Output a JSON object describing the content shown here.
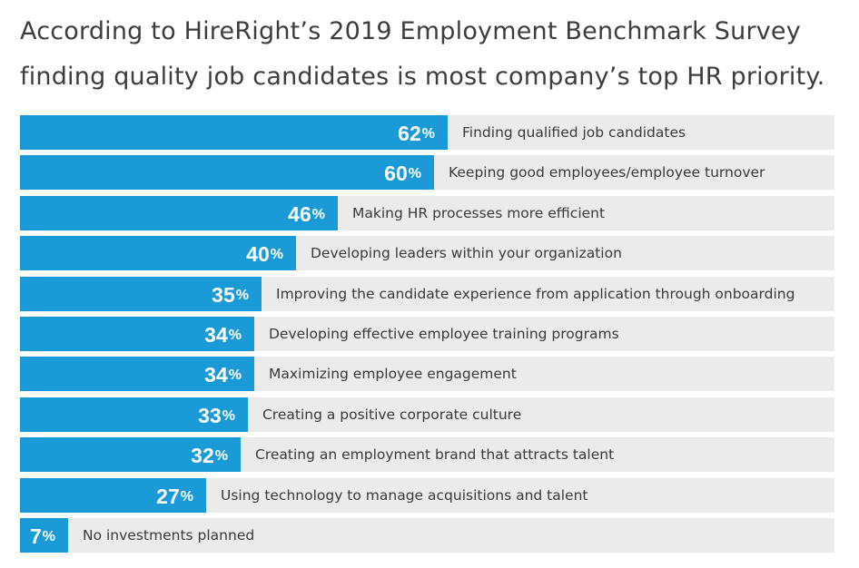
{
  "title_lines": [
    "According to HireRight’s 2019 Employment Benchmark Survey",
    "finding quality job candidates is most company’s top HR priority."
  ],
  "chart_data": {
    "type": "bar",
    "orientation": "horizontal",
    "title": "According to HireRight’s 2019 Employment Benchmark Survey finding quality job candidates is most company’s top HR priority.",
    "xlim": [
      0,
      100
    ],
    "unit": "%",
    "grid": false,
    "bar_color": "#1a9bd7",
    "track_color": "#ebebeb",
    "categories": [
      "Finding qualified job candidates",
      "Keeping good employees/employee turnover",
      "Making HR processes more efficient",
      "Developing leaders within your organization",
      "Improving the candidate experience from application through onboarding",
      "Developing effective employee training programs",
      "Maximizing employee engagement",
      "Creating a positive corporate culture",
      "Creating an employment brand that attracts talent",
      "Using technology to manage acquisitions and talent",
      "No investments planned"
    ],
    "values": [
      62,
      60,
      46,
      40,
      35,
      34,
      34,
      33,
      32,
      27,
      7
    ]
  }
}
